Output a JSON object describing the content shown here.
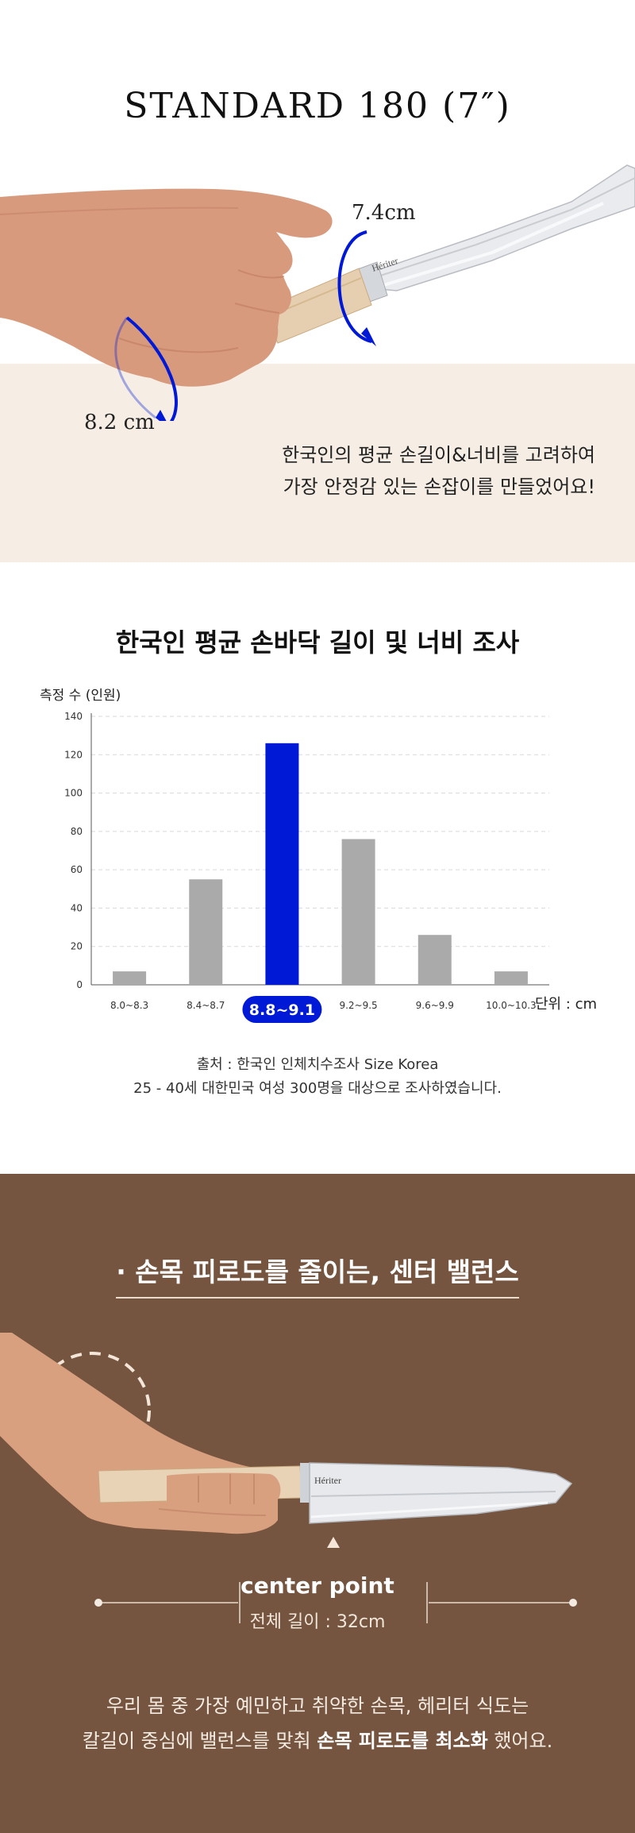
{
  "hero": {
    "title": "STANDARD 180 (7″)",
    "knife_brand": "Hériter",
    "measure_blade": "7.4cm",
    "measure_wrist": "8.2 cm",
    "description_lines": [
      "한국인의 평균 손길이&너비를 고려하여",
      "가장 안정감 있는 손잡이를 만들었어요!"
    ]
  },
  "chart_section": {
    "title": "한국인 평균 손바닥 길이 및 너비 조사",
    "source_lines": [
      "출처 : 한국인 인체치수조사 Size Korea",
      "25 - 40세 대한민국 여성 300명을 대상으로 조사하였습니다."
    ]
  },
  "chart_data": {
    "type": "bar",
    "ylabel": "측정 수 (인원)",
    "xlabel": "단위 : cm",
    "categories": [
      "8.0~8.3",
      "8.4~8.7",
      "8.8~9.1",
      "9.2~9.5",
      "9.6~9.9",
      "10.0~10.3"
    ],
    "values": [
      7,
      55,
      126,
      76,
      26,
      7
    ],
    "highlight_index": 2,
    "ylim": [
      0,
      140
    ],
    "yticks": [
      0,
      20,
      40,
      60,
      80,
      100,
      120,
      140
    ],
    "grid": true,
    "colors": {
      "bar": "#aaaaaa",
      "highlight": "#0019d6",
      "grid": "#d9d9d9",
      "axis": "#555555"
    }
  },
  "balance_section": {
    "heading": "· 손목 피로도를 줄이는, 센터 밸런스",
    "knife_brand": "Hériter",
    "center_point_label": "center point",
    "total_length": "전체 길이 : 32cm",
    "desc_line1": "우리 몸 중 가장 예민하고 취약한 손목, 헤리터 식도는",
    "desc_line2_prefix": "칼길이 중심에 밸런스를 맞춰 ",
    "desc_line2_bold": "손목 피로도를 최소화",
    "desc_line2_suffix": " 했어요."
  },
  "colors": {
    "hero_bg": "#f6eee4",
    "brown_bg": "#75553f",
    "accent_blue": "#0019d6"
  }
}
